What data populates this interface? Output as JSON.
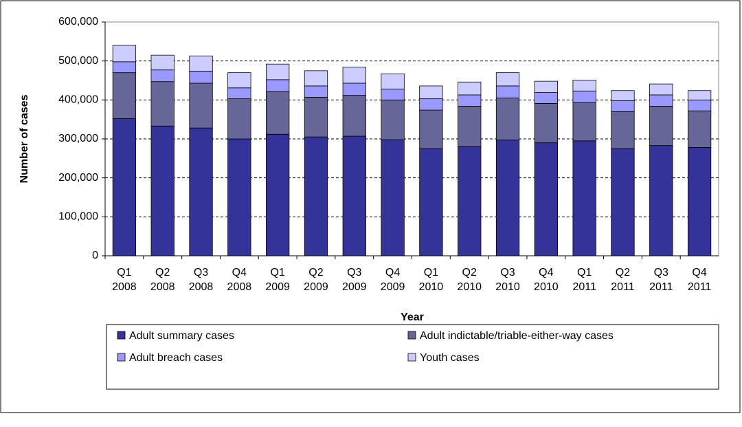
{
  "chart_data": {
    "type": "stacked-bar",
    "x_label": "Year",
    "y_label": "Number of cases",
    "categories": [
      "Q1 2008",
      "Q2 2008",
      "Q3 2008",
      "Q4 2008",
      "Q1 2009",
      "Q2 2009",
      "Q3 2009",
      "Q4 2009",
      "Q1 2010",
      "Q2 2010",
      "Q3 2010",
      "Q4 2010",
      "Q1 2011",
      "Q2 2011",
      "Q3 2011",
      "Q4 2011"
    ],
    "series": [
      {
        "name": "Adult summary cases",
        "color": "#333399",
        "values": [
          352000,
          333000,
          328000,
          300000,
          312000,
          305000,
          307000,
          298000,
          275000,
          280000,
          297000,
          290000,
          295000,
          275000,
          283000,
          278000
        ]
      },
      {
        "name": "Adult indictable/triable-either-way cases",
        "color": "#666699",
        "values": [
          118000,
          114000,
          115000,
          103000,
          109000,
          102000,
          105000,
          102000,
          99000,
          104000,
          108000,
          101000,
          98000,
          95000,
          101000,
          94000
        ]
      },
      {
        "name": "Adult breach cases",
        "color": "#9999ff",
        "values": [
          28000,
          30000,
          31000,
          28000,
          31000,
          29000,
          31000,
          28000,
          29000,
          29000,
          31000,
          28000,
          30000,
          28000,
          29000,
          28000
        ]
      },
      {
        "name": "Youth cases",
        "color": "#ccccff",
        "values": [
          42000,
          38000,
          39000,
          39000,
          40000,
          39000,
          41000,
          39000,
          33000,
          33000,
          34000,
          29000,
          28000,
          26000,
          28000,
          24000
        ]
      }
    ],
    "ylim": [
      0,
      600000
    ],
    "yticks": [
      0,
      {
        "value": 100000,
        "label": "100,000"
      },
      {
        "value": 200000,
        "label": "200,000"
      },
      {
        "value": 300000,
        "label": "300,000"
      },
      {
        "value": 400000,
        "label": "400,000"
      },
      {
        "value": 500000,
        "label": "500,000"
      },
      {
        "value": 600000,
        "label": "600,000"
      }
    ],
    "grid": true
  }
}
